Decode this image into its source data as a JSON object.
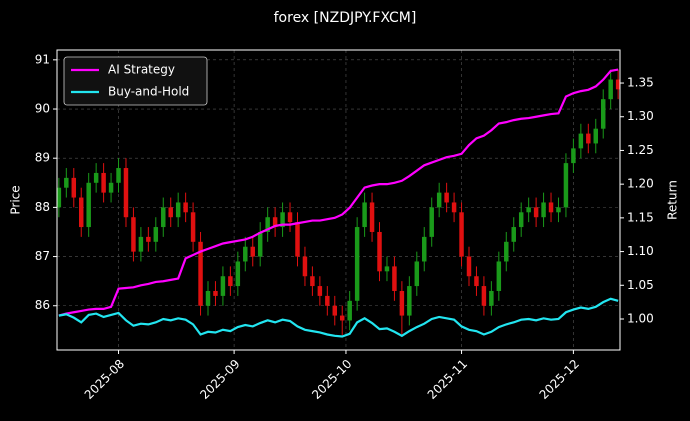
{
  "chart_data": {
    "type": "candlestick",
    "title": "forex [NZDJPY.FXCM]",
    "ylabel": "Price",
    "y2label": "Return",
    "x": [
      1,
      3,
      5,
      7,
      9,
      11,
      13,
      15,
      17,
      19,
      21,
      23,
      25,
      27,
      29,
      31,
      33,
      35,
      37,
      39,
      41,
      43,
      45,
      47,
      49,
      51,
      53,
      55,
      57,
      59,
      61,
      63,
      65,
      67,
      69,
      71,
      73,
      75,
      77,
      79,
      81,
      83,
      85,
      87,
      89,
      91,
      93,
      95,
      97,
      99,
      101,
      103,
      105,
      107,
      109,
      111,
      113,
      115,
      117,
      119,
      121,
      123,
      125,
      127,
      129,
      131,
      133,
      135,
      137,
      139,
      141,
      143,
      145,
      147,
      149,
      151
    ],
    "open": [
      88.0,
      88.4,
      88.6,
      88.2,
      87.6,
      88.5,
      88.7,
      88.3,
      88.5,
      88.8,
      87.8,
      87.1,
      87.4,
      87.3,
      87.6,
      88.0,
      87.8,
      88.1,
      87.9,
      87.3,
      86.0,
      86.3,
      86.2,
      86.6,
      86.4,
      86.9,
      87.2,
      87.0,
      87.5,
      87.8,
      87.6,
      87.9,
      87.7,
      87.0,
      86.6,
      86.4,
      86.2,
      86.0,
      85.8,
      85.7,
      86.1,
      87.6,
      88.1,
      87.5,
      86.7,
      86.8,
      86.3,
      85.8,
      86.4,
      86.9,
      87.4,
      88.0,
      88.3,
      88.1,
      87.9,
      87.0,
      86.6,
      86.4,
      86.0,
      86.3,
      86.9,
      87.3,
      87.6,
      87.9,
      88.0,
      87.8,
      88.1,
      87.9,
      88.0,
      88.9,
      89.2,
      89.5,
      89.3,
      89.6,
      90.2,
      90.6
    ],
    "high": [
      88.6,
      88.8,
      88.8,
      88.4,
      88.7,
      88.9,
      88.9,
      88.7,
      89.0,
      89.0,
      88.0,
      87.6,
      87.6,
      87.8,
      88.2,
      88.2,
      88.3,
      88.3,
      88.1,
      87.5,
      86.5,
      86.5,
      86.8,
      86.8,
      87.1,
      87.4,
      87.4,
      87.7,
      88.0,
      88.0,
      88.1,
      88.1,
      87.9,
      87.2,
      86.8,
      86.6,
      86.4,
      86.2,
      86.0,
      86.3,
      87.8,
      88.3,
      88.3,
      87.7,
      87.0,
      87.0,
      86.5,
      86.6,
      87.1,
      87.6,
      88.2,
      88.5,
      88.5,
      88.3,
      88.1,
      87.2,
      86.8,
      86.6,
      86.5,
      87.1,
      87.5,
      87.8,
      88.1,
      88.2,
      88.2,
      88.3,
      88.3,
      88.2,
      89.1,
      89.4,
      89.7,
      89.7,
      89.8,
      90.4,
      90.8,
      90.8
    ],
    "low": [
      87.8,
      88.2,
      88.0,
      87.4,
      87.4,
      88.3,
      88.1,
      88.1,
      88.3,
      87.6,
      86.9,
      86.9,
      87.1,
      87.1,
      87.4,
      87.6,
      87.6,
      87.7,
      87.1,
      85.8,
      85.8,
      86.0,
      86.0,
      86.2,
      86.2,
      86.7,
      86.8,
      86.8,
      87.3,
      87.4,
      87.4,
      87.5,
      86.8,
      86.4,
      86.2,
      86.0,
      85.8,
      85.6,
      85.4,
      85.5,
      85.9,
      87.4,
      87.3,
      86.5,
      86.5,
      86.1,
      85.4,
      85.6,
      86.2,
      86.7,
      87.2,
      87.8,
      87.9,
      87.7,
      86.8,
      86.4,
      86.2,
      85.8,
      85.8,
      86.1,
      86.7,
      87.1,
      87.4,
      87.7,
      87.6,
      87.6,
      87.7,
      87.7,
      87.8,
      88.7,
      89.0,
      89.1,
      89.1,
      89.4,
      90.0,
      90.2
    ],
    "close": [
      88.4,
      88.6,
      88.2,
      87.6,
      88.5,
      88.7,
      88.3,
      88.5,
      88.8,
      87.8,
      87.1,
      87.4,
      87.3,
      87.6,
      88.0,
      87.8,
      88.1,
      87.9,
      87.3,
      86.0,
      86.3,
      86.2,
      86.6,
      86.4,
      86.9,
      87.2,
      87.0,
      87.5,
      87.8,
      87.6,
      87.9,
      87.7,
      87.0,
      86.6,
      86.4,
      86.2,
      86.0,
      85.8,
      85.7,
      86.1,
      87.6,
      88.1,
      87.5,
      86.7,
      86.8,
      86.3,
      85.8,
      86.4,
      86.9,
      87.4,
      88.0,
      88.3,
      88.1,
      87.9,
      87.0,
      86.6,
      86.4,
      86.0,
      86.3,
      86.9,
      87.3,
      87.6,
      87.9,
      88.0,
      87.8,
      88.1,
      87.9,
      88.0,
      88.9,
      89.2,
      89.5,
      89.3,
      89.6,
      90.2,
      90.6,
      90.4
    ],
    "up_color": "#1a9a1a",
    "down_color": "#e01010",
    "series": [
      {
        "name": "AI Strategy",
        "color": "#ff00ff",
        "axis": "y2",
        "values": [
          1.005,
          1.008,
          1.01,
          1.012,
          1.014,
          1.015,
          1.015,
          1.018,
          1.045,
          1.046,
          1.047,
          1.05,
          1.052,
          1.055,
          1.056,
          1.058,
          1.06,
          1.09,
          1.095,
          1.1,
          1.104,
          1.108,
          1.112,
          1.114,
          1.116,
          1.118,
          1.122,
          1.128,
          1.133,
          1.138,
          1.14,
          1.14,
          1.142,
          1.144,
          1.146,
          1.146,
          1.148,
          1.15,
          1.155,
          1.165,
          1.18,
          1.195,
          1.198,
          1.2,
          1.2,
          1.202,
          1.205,
          1.212,
          1.22,
          1.228,
          1.232,
          1.236,
          1.24,
          1.242,
          1.245,
          1.258,
          1.268,
          1.272,
          1.28,
          1.29,
          1.292,
          1.295,
          1.297,
          1.298,
          1.3,
          1.302,
          1.304,
          1.305,
          1.33,
          1.335,
          1.338,
          1.34,
          1.345,
          1.355,
          1.368,
          1.37
        ]
      },
      {
        "name": "Buy-and-Hold",
        "color": "#22e5f0",
        "axis": "y2",
        "values": [
          1.005,
          1.007,
          1.002,
          0.995,
          1.006,
          1.008,
          1.003,
          1.006,
          1.009,
          0.998,
          0.99,
          0.993,
          0.992,
          0.995,
          1.0,
          0.998,
          1.001,
          0.999,
          0.992,
          0.977,
          0.981,
          0.98,
          0.984,
          0.982,
          0.988,
          0.991,
          0.989,
          0.994,
          0.998,
          0.995,
          0.999,
          0.997,
          0.989,
          0.984,
          0.982,
          0.98,
          0.977,
          0.975,
          0.974,
          0.978,
          0.995,
          1.001,
          0.994,
          0.985,
          0.986,
          0.981,
          0.975,
          0.982,
          0.988,
          0.993,
          1.0,
          1.003,
          1.001,
          0.999,
          0.989,
          0.984,
          0.982,
          0.977,
          0.981,
          0.988,
          0.992,
          0.995,
          0.999,
          1.0,
          0.998,
          1.001,
          0.999,
          1.0,
          1.01,
          1.014,
          1.017,
          1.015,
          1.018,
          1.025,
          1.03,
          1.027
        ]
      }
    ],
    "xlim": [
      0.5,
      151.5
    ],
    "xticks": [
      {
        "value": 17,
        "label": "2025-08"
      },
      {
        "value": 48,
        "label": "2025-09"
      },
      {
        "value": 78,
        "label": "2025-10"
      },
      {
        "value": 109,
        "label": "2025-11"
      },
      {
        "value": 139,
        "label": "2025-12"
      }
    ],
    "ylim": [
      85.1,
      91.2
    ],
    "yticks": [
      86,
      87,
      88,
      89,
      90,
      91
    ],
    "y2lim": [
      0.954,
      1.399
    ],
    "y2ticks": [
      {
        "value": 1,
        "label": "1.00"
      },
      1.05,
      {
        "value": 1.1,
        "label": "1.10"
      },
      1.15,
      {
        "value": 1.2,
        "label": "1.20"
      },
      1.25,
      {
        "value": 1.3,
        "label": "1.30"
      },
      1.35
    ],
    "grid": true,
    "legend": "upper left"
  }
}
